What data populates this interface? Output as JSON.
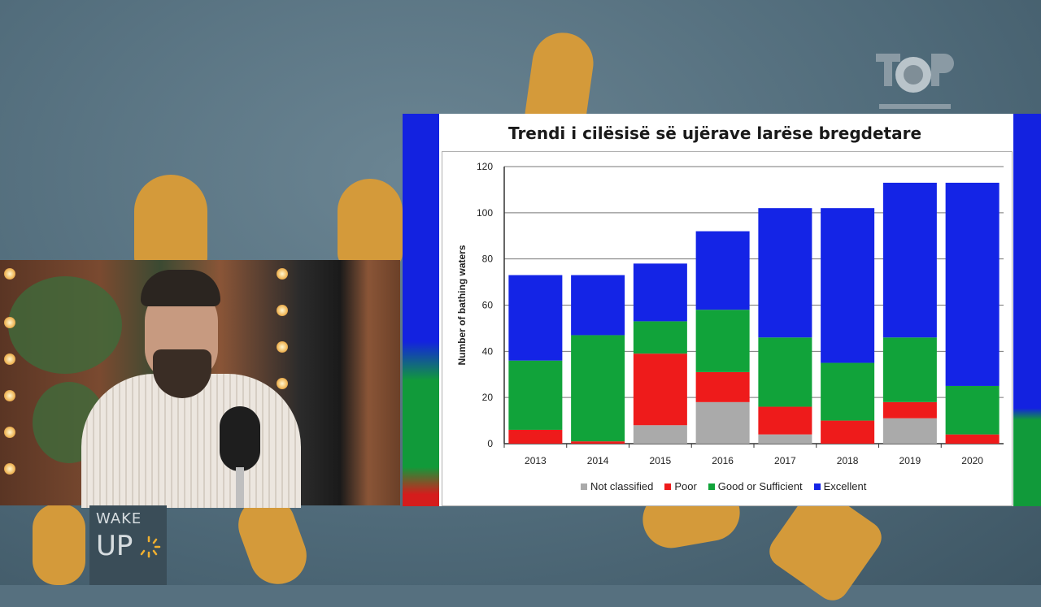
{
  "slide": {
    "title": "Trendi i cilësisë së ujërave larëse bregdetare"
  },
  "show_logo": {
    "line1": "WAKE",
    "line2": "UP"
  },
  "colors": {
    "not_classified": "#aaaaaa",
    "poor": "#ee1b1b",
    "good": "#11a33a",
    "excellent": "#1424e6"
  },
  "chart_data": {
    "type": "bar",
    "stacked": true,
    "title": "",
    "xlabel": "",
    "ylabel": "Number of bathing waters",
    "ylim": [
      0,
      120
    ],
    "yticks": [
      "0",
      "20",
      "40",
      "60",
      "80",
      "100",
      "120"
    ],
    "categories": [
      "2013",
      "2014",
      "2015",
      "2016",
      "2017",
      "2018",
      "2019",
      "2020"
    ],
    "series": [
      {
        "name": "Not classified",
        "color": "#aaaaaa",
        "values": [
          0,
          0,
          8,
          18,
          4,
          0,
          11,
          0
        ]
      },
      {
        "name": "Poor",
        "color": "#ee1b1b",
        "values": [
          6,
          1,
          31,
          13,
          12,
          10,
          7,
          4
        ]
      },
      {
        "name": "Good or Sufficient",
        "color": "#11a33a",
        "values": [
          30,
          46,
          14,
          27,
          30,
          25,
          28,
          21
        ]
      },
      {
        "name": "Excellent",
        "color": "#1424e6",
        "values": [
          37,
          26,
          25,
          34,
          56,
          67,
          67,
          88
        ]
      }
    ],
    "legend_position": "bottom",
    "grid": true
  }
}
